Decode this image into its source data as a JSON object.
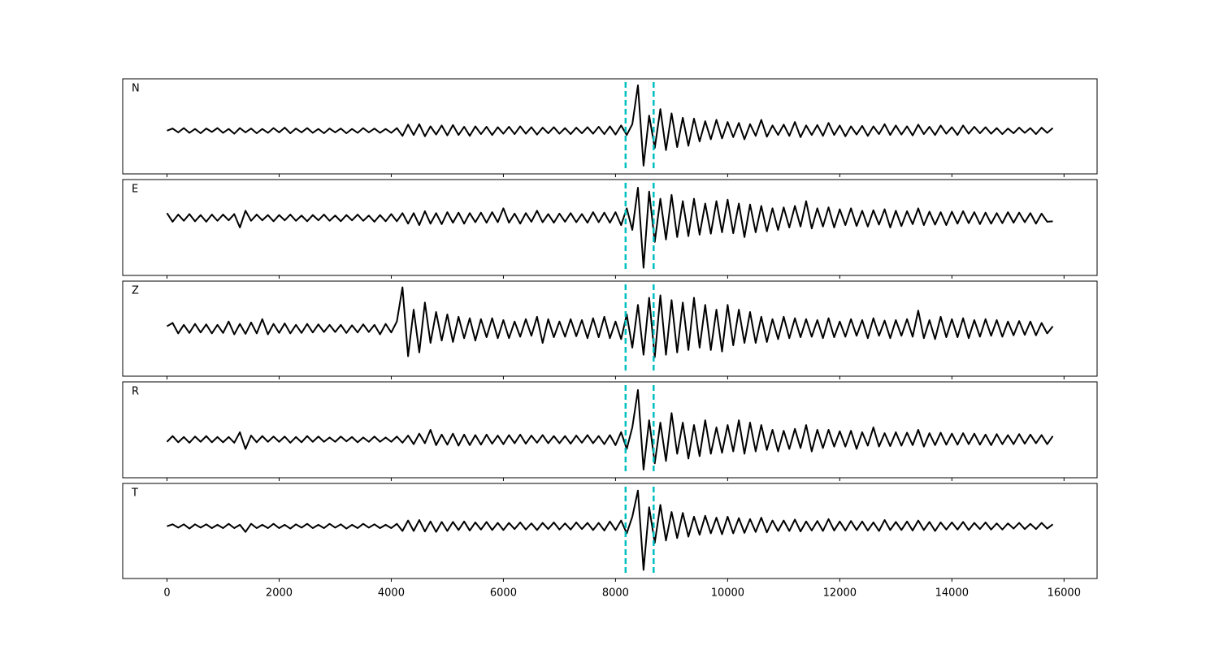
{
  "chart_data": {
    "type": "line",
    "x": [
      0,
      100,
      200,
      300,
      400,
      500,
      600,
      700,
      800,
      900,
      1000,
      1100,
      1200,
      1300,
      1400,
      1500,
      1600,
      1700,
      1800,
      1900,
      2000,
      2100,
      2200,
      2300,
      2400,
      2500,
      2600,
      2700,
      2800,
      2900,
      3000,
      3100,
      3200,
      3300,
      3400,
      3500,
      3600,
      3700,
      3800,
      3900,
      4000,
      4100,
      4200,
      4300,
      4400,
      4500,
      4600,
      4700,
      4800,
      4900,
      5000,
      5100,
      5200,
      5300,
      5400,
      5500,
      5600,
      5700,
      5800,
      5900,
      6000,
      6100,
      6200,
      6300,
      6400,
      6500,
      6600,
      6700,
      6800,
      6900,
      7000,
      7100,
      7200,
      7300,
      7400,
      7500,
      7600,
      7700,
      7800,
      7900,
      8000,
      8100,
      8200,
      8300,
      8400,
      8500,
      8600,
      8700,
      8800,
      8900,
      9000,
      9100,
      9200,
      9300,
      9400,
      9500,
      9600,
      9700,
      9800,
      9900,
      10000,
      10100,
      10200,
      10300,
      10400,
      10500,
      10600,
      10700,
      10800,
      10900,
      11000,
      11100,
      11200,
      11300,
      11400,
      11500,
      11600,
      11700,
      11800,
      11900,
      12000,
      12100,
      12200,
      12300,
      12400,
      12500,
      12600,
      12700,
      12800,
      12900,
      13000,
      13100,
      13200,
      13300,
      13400,
      13500,
      13600,
      13700,
      13800,
      13900,
      14000,
      14100,
      14200,
      14300,
      14400,
      14500,
      14600,
      14700,
      14800,
      14900,
      15000,
      15100,
      15200,
      15300,
      15400,
      15500,
      15600,
      15700,
      15800
    ],
    "xlim": [
      -790,
      16590
    ],
    "xticks": [
      0,
      2000,
      4000,
      6000,
      8000,
      10000,
      12000,
      14000,
      16000
    ],
    "vlines": [
      8180,
      8680
    ],
    "vline_color": "#00bfbf",
    "series": [
      {
        "name": "N",
        "color": "#000000",
        "ylim": [
          -1.0,
          1.2
        ],
        "values": [
          0.0,
          0.05,
          -0.04,
          0.06,
          -0.05,
          0.04,
          -0.06,
          0.05,
          -0.03,
          0.06,
          -0.05,
          0.04,
          -0.07,
          0.06,
          -0.04,
          0.05,
          -0.06,
          0.04,
          -0.05,
          0.06,
          -0.04,
          0.07,
          -0.06,
          0.05,
          -0.04,
          0.06,
          -0.05,
          0.04,
          -0.06,
          0.05,
          -0.04,
          0.05,
          -0.06,
          0.04,
          -0.05,
          0.06,
          -0.04,
          0.05,
          -0.05,
          0.04,
          -0.05,
          0.06,
          -0.12,
          0.14,
          -0.1,
          0.15,
          -0.13,
          0.1,
          -0.09,
          0.12,
          -0.11,
          0.13,
          -0.1,
          0.09,
          -0.12,
          0.1,
          -0.08,
          0.09,
          -0.1,
          0.08,
          -0.07,
          0.09,
          -0.08,
          0.1,
          -0.07,
          0.08,
          -0.09,
          0.07,
          -0.06,
          0.08,
          -0.07,
          0.06,
          -0.08,
          0.07,
          -0.06,
          0.08,
          -0.07,
          0.09,
          -0.08,
          0.1,
          -0.09,
          0.12,
          -0.1,
          0.15,
          1.05,
          -0.81,
          0.35,
          -0.4,
          0.5,
          -0.45,
          0.4,
          -0.38,
          0.3,
          -0.35,
          0.28,
          -0.25,
          0.22,
          -0.2,
          0.25,
          -0.18,
          0.2,
          -0.15,
          0.18,
          -0.2,
          0.15,
          -0.12,
          0.25,
          -0.14,
          0.12,
          -0.1,
          0.14,
          -0.12,
          0.2,
          -0.15,
          0.12,
          -0.1,
          0.13,
          -0.12,
          0.18,
          -0.1,
          0.12,
          -0.13,
          0.1,
          -0.09,
          0.11,
          -0.12,
          0.1,
          -0.08,
          0.15,
          -0.1,
          0.12,
          -0.09,
          0.1,
          -0.11,
          0.14,
          -0.08,
          0.09,
          -0.1,
          0.12,
          -0.07,
          0.08,
          -0.1,
          0.12,
          -0.07,
          0.09,
          -0.06,
          0.08,
          -0.07,
          0.06,
          -0.08,
          0.05,
          -0.06,
          0.07,
          -0.05,
          0.06,
          -0.08,
          0.07,
          -0.05,
          0.06
        ]
      },
      {
        "name": "E",
        "color": "#000000",
        "ylim": [
          -1.2,
          0.8
        ],
        "values": [
          0.1,
          -0.08,
          0.07,
          -0.06,
          0.08,
          -0.07,
          0.06,
          -0.08,
          0.07,
          -0.06,
          0.07,
          -0.05,
          0.08,
          -0.2,
          0.15,
          -0.06,
          0.07,
          -0.05,
          0.06,
          -0.07,
          0.06,
          -0.05,
          0.07,
          -0.06,
          0.05,
          -0.07,
          0.06,
          -0.05,
          0.07,
          -0.06,
          0.05,
          -0.07,
          0.06,
          -0.05,
          0.07,
          -0.06,
          0.05,
          -0.08,
          0.06,
          -0.07,
          0.08,
          -0.07,
          0.1,
          -0.12,
          0.1,
          -0.15,
          0.14,
          -0.12,
          0.1,
          -0.13,
          0.12,
          -0.1,
          0.11,
          -0.12,
          0.1,
          -0.09,
          0.11,
          -0.1,
          0.12,
          -0.09,
          0.2,
          -0.1,
          0.09,
          -0.12,
          0.1,
          -0.08,
          0.15,
          -0.09,
          0.08,
          -0.1,
          0.09,
          -0.08,
          0.1,
          -0.09,
          0.08,
          -0.1,
          0.12,
          -0.09,
          0.11,
          -0.1,
          0.12,
          -0.15,
          0.2,
          -0.25,
          0.63,
          -1.04,
          0.55,
          -0.5,
          0.4,
          -0.45,
          0.48,
          -0.4,
          0.35,
          -0.38,
          0.4,
          -0.35,
          0.3,
          -0.33,
          0.35,
          -0.3,
          0.38,
          -0.32,
          0.3,
          -0.4,
          0.28,
          -0.3,
          0.25,
          -0.28,
          0.2,
          -0.25,
          0.22,
          -0.2,
          0.25,
          -0.18,
          0.35,
          -0.22,
          0.2,
          -0.18,
          0.22,
          -0.2,
          0.18,
          -0.15,
          0.2,
          -0.17,
          0.15,
          -0.18,
          0.16,
          -0.14,
          0.18,
          -0.2,
          0.15,
          -0.17,
          0.14,
          -0.13,
          0.2,
          -0.15,
          0.13,
          -0.14,
          0.12,
          -0.15,
          0.13,
          -0.12,
          0.14,
          -0.11,
          0.12,
          -0.13,
          0.11,
          -0.12,
          0.1,
          -0.11,
          0.12,
          -0.1,
          0.11,
          -0.09,
          0.1,
          -0.12,
          0.09,
          -0.08,
          -0.07
        ]
      },
      {
        "name": "Z",
        "color": "#000000",
        "ylim": [
          -1.0,
          1.0
        ],
        "values": [
          0.05,
          0.12,
          -0.1,
          0.08,
          -0.09,
          0.1,
          -0.08,
          0.09,
          -0.1,
          0.08,
          -0.09,
          0.15,
          -0.12,
          0.1,
          -0.11,
          0.13,
          -0.1,
          0.2,
          -0.12,
          0.1,
          -0.09,
          0.11,
          -0.1,
          0.08,
          -0.09,
          0.1,
          -0.08,
          0.09,
          -0.07,
          0.08,
          -0.07,
          0.08,
          -0.09,
          0.07,
          -0.08,
          0.09,
          -0.07,
          0.08,
          -0.12,
          0.1,
          -0.08,
          0.15,
          0.87,
          -0.58,
          0.4,
          -0.5,
          0.55,
          -0.3,
          0.35,
          -0.25,
          0.3,
          -0.28,
          0.25,
          -0.2,
          0.22,
          -0.25,
          0.2,
          -0.18,
          0.22,
          -0.2,
          0.18,
          -0.2,
          0.15,
          -0.17,
          0.2,
          -0.15,
          0.25,
          -0.3,
          0.2,
          -0.18,
          0.15,
          -0.17,
          0.2,
          -0.16,
          0.18,
          -0.2,
          0.22,
          -0.18,
          0.25,
          -0.2,
          0.15,
          -0.22,
          0.3,
          -0.4,
          0.5,
          -0.55,
          0.65,
          -0.6,
          0.7,
          -0.55,
          0.6,
          -0.5,
          0.55,
          -0.45,
          0.65,
          -0.4,
          0.5,
          -0.45,
          0.4,
          -0.48,
          0.5,
          -0.35,
          0.4,
          -0.3,
          0.35,
          -0.3,
          0.25,
          -0.28,
          0.2,
          -0.22,
          0.25,
          -0.2,
          0.22,
          -0.18,
          0.2,
          -0.17,
          0.18,
          -0.2,
          0.22,
          -0.18,
          0.15,
          -0.17,
          0.2,
          -0.15,
          0.18,
          -0.2,
          0.22,
          -0.15,
          0.17,
          -0.2,
          0.18,
          -0.15,
          0.2,
          -0.17,
          0.38,
          -0.2,
          0.18,
          -0.22,
          0.25,
          -0.18,
          0.2,
          -0.18,
          0.22,
          -0.2,
          0.18,
          -0.17,
          0.2,
          -0.15,
          0.18,
          -0.17,
          0.15,
          -0.14,
          0.16,
          -0.13,
          0.15,
          -0.14,
          0.12,
          -0.1,
          0.05
        ]
      },
      {
        "name": "R",
        "color": "#000000",
        "ylim": [
          -0.8,
          1.2
        ],
        "values": [
          -0.05,
          0.07,
          -0.06,
          0.05,
          -0.07,
          0.06,
          -0.05,
          0.07,
          -0.06,
          0.05,
          -0.06,
          0.05,
          -0.07,
          0.15,
          -0.2,
          0.08,
          -0.06,
          0.07,
          -0.05,
          0.06,
          -0.05,
          0.06,
          -0.07,
          0.05,
          -0.06,
          0.07,
          -0.05,
          0.06,
          -0.05,
          0.04,
          -0.05,
          0.06,
          -0.04,
          0.05,
          -0.06,
          0.04,
          -0.05,
          0.06,
          -0.05,
          0.04,
          -0.05,
          0.06,
          -0.07,
          0.08,
          -0.1,
          0.12,
          -0.08,
          0.2,
          -0.12,
          0.1,
          -0.11,
          0.12,
          -0.13,
          0.1,
          -0.12,
          0.09,
          -0.11,
          0.1,
          -0.09,
          0.08,
          -0.1,
          0.09,
          -0.08,
          0.1,
          -0.09,
          0.08,
          -0.07,
          0.09,
          -0.08,
          0.07,
          -0.08,
          0.07,
          -0.09,
          0.08,
          -0.07,
          0.09,
          -0.08,
          0.07,
          -0.1,
          0.09,
          -0.12,
          0.15,
          -0.2,
          0.25,
          1.03,
          -0.63,
          0.4,
          -0.5,
          0.35,
          -0.45,
          0.55,
          -0.3,
          0.35,
          -0.4,
          0.3,
          -0.35,
          0.4,
          -0.3,
          0.25,
          -0.28,
          0.3,
          -0.25,
          0.4,
          -0.3,
          0.35,
          -0.25,
          0.3,
          -0.22,
          0.2,
          -0.25,
          0.18,
          -0.2,
          0.22,
          -0.18,
          0.3,
          -0.25,
          0.2,
          -0.18,
          0.2,
          -0.15,
          0.17,
          -0.15,
          0.18,
          -0.2,
          0.15,
          -0.13,
          0.25,
          -0.15,
          0.13,
          -0.14,
          0.15,
          -0.13,
          0.14,
          -0.12,
          0.2,
          -0.15,
          0.13,
          -0.12,
          0.14,
          -0.11,
          0.12,
          -0.11,
          0.13,
          -0.1,
          0.12,
          -0.11,
          0.1,
          -0.12,
          0.11,
          -0.1,
          0.09,
          -0.1,
          0.11,
          -0.09,
          0.1,
          -0.08,
          0.09,
          -0.1,
          0.07
        ]
      },
      {
        "name": "T",
        "color": "#000000",
        "ylim": [
          -1.1,
          0.9
        ],
        "values": [
          0.0,
          0.04,
          -0.03,
          0.04,
          -0.05,
          0.04,
          -0.03,
          0.04,
          -0.04,
          0.03,
          -0.04,
          0.05,
          -0.04,
          0.03,
          -0.12,
          0.05,
          -0.04,
          0.03,
          -0.04,
          0.05,
          -0.04,
          0.03,
          -0.05,
          0.04,
          -0.03,
          0.05,
          -0.04,
          0.03,
          -0.04,
          0.05,
          -0.03,
          0.04,
          -0.05,
          0.03,
          -0.04,
          0.05,
          -0.03,
          0.04,
          -0.04,
          0.03,
          -0.04,
          0.05,
          -0.1,
          0.12,
          -0.1,
          0.13,
          -0.11,
          0.1,
          -0.12,
          0.09,
          -0.1,
          0.09,
          -0.08,
          0.1,
          -0.09,
          0.08,
          -0.07,
          0.09,
          -0.08,
          0.07,
          -0.08,
          0.07,
          -0.06,
          0.08,
          -0.07,
          0.06,
          -0.08,
          0.07,
          -0.06,
          0.08,
          -0.07,
          0.06,
          -0.07,
          0.08,
          -0.06,
          0.07,
          -0.08,
          0.07,
          -0.09,
          0.1,
          -0.08,
          0.12,
          -0.15,
          0.2,
          0.75,
          -0.92,
          0.4,
          -0.35,
          0.45,
          -0.3,
          0.3,
          -0.25,
          0.28,
          -0.22,
          0.2,
          -0.18,
          0.22,
          -0.15,
          0.18,
          -0.17,
          0.2,
          -0.15,
          0.17,
          -0.14,
          0.15,
          -0.12,
          0.18,
          -0.13,
          0.12,
          -0.1,
          0.12,
          -0.1,
          0.14,
          -0.11,
          0.1,
          -0.09,
          0.11,
          -0.1,
          0.15,
          -0.09,
          0.1,
          -0.09,
          0.11,
          -0.08,
          0.1,
          -0.09,
          0.08,
          -0.1,
          0.13,
          -0.08,
          0.09,
          -0.08,
          0.1,
          -0.09,
          0.12,
          -0.08,
          0.09,
          -0.1,
          0.08,
          -0.07,
          0.08,
          -0.07,
          0.09,
          -0.08,
          0.07,
          -0.06,
          0.08,
          -0.07,
          0.06,
          -0.07,
          0.06,
          -0.05,
          0.07,
          -0.06,
          0.05,
          -0.06,
          0.07,
          -0.05,
          0.04
        ]
      }
    ]
  }
}
